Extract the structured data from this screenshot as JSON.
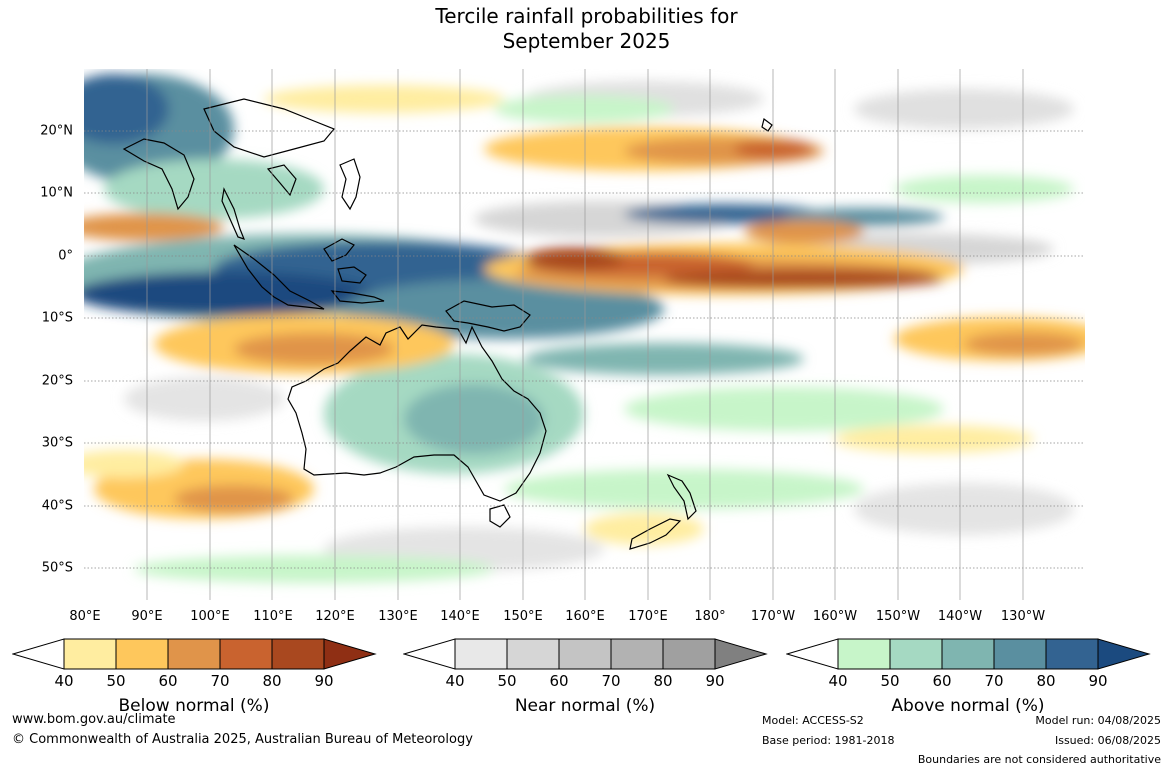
{
  "title_line1": "Tercile rainfall probabilities for",
  "title_line2": "September 2025",
  "lat_labels": [
    "20°N",
    "10°N",
    "0°",
    "10°S",
    "20°S",
    "30°S",
    "40°S",
    "50°S"
  ],
  "lon_labels": [
    "80°E",
    "90°E",
    "100°E",
    "110°E",
    "120°E",
    "130°E",
    "140°E",
    "150°E",
    "160°E",
    "170°E",
    "180°",
    "170°W",
    "160°W",
    "150°W",
    "140°W",
    "130°W"
  ],
  "colorbars": [
    {
      "title": "Below normal (%)",
      "ticks": [
        "40",
        "50",
        "60",
        "70",
        "80",
        "90"
      ],
      "colors": [
        "#ffeda0",
        "#fec75c",
        "#e0944a",
        "#c9632f",
        "#a9481f"
      ],
      "low_color": "#ffffff",
      "high_color": "#8f2f14"
    },
    {
      "title": "Near normal (%)",
      "ticks": [
        "40",
        "50",
        "60",
        "70",
        "80",
        "90"
      ],
      "colors": [
        "#e8e8e8",
        "#d6d6d6",
        "#c4c4c4",
        "#b2b2b2",
        "#a0a0a0"
      ],
      "low_color": "#ffffff",
      "high_color": "#808080"
    },
    {
      "title": "Above normal (%)",
      "ticks": [
        "40",
        "50",
        "60",
        "70",
        "80",
        "90"
      ],
      "colors": [
        "#c7f5c9",
        "#a5d9c2",
        "#7fb5b0",
        "#5a8fa0",
        "#336391"
      ],
      "low_color": "#ffffff",
      "high_color": "#1b4a7f"
    }
  ],
  "footer": {
    "url": "www.bom.gov.au/climate",
    "copyright": "© Commonwealth of Australia 2025, Australian Bureau of Meteorology",
    "model": "Model: ACCESS-S2",
    "base_period": "Base period: 1981-2018",
    "model_run": "Model run: 04/08/2025",
    "issued": "Issued: 06/08/2025",
    "disclaimer": "Boundaries are not considered authoritative"
  }
}
